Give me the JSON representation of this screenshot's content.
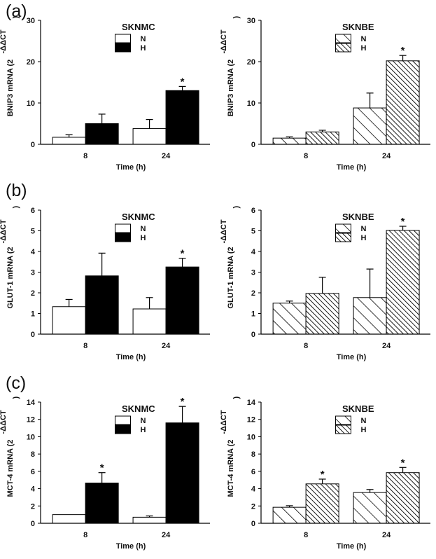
{
  "panel_labels": [
    "(a)",
    "(b)",
    "(c)"
  ],
  "colors": {
    "N": "#ffffff",
    "H_solid": "#000000",
    "stroke": "#000000"
  },
  "chart_data": [
    {
      "type": "bar",
      "title": "SKNMC",
      "hatched": false,
      "xlabel": "Time (h)",
      "ylabel": "BNIP3 mRNA (2",
      "categories": [
        "8",
        "24"
      ],
      "ylim": [
        0,
        30
      ],
      "yticks": [
        0,
        10,
        20,
        30
      ],
      "legend": [
        "N",
        "H"
      ],
      "legend_placement": "top-center",
      "series": [
        {
          "name": "N",
          "values": [
            1.7,
            3.8
          ],
          "errors": [
            0.6,
            2.2
          ]
        },
        {
          "name": "H",
          "values": [
            5.0,
            13.0
          ],
          "errors": [
            2.3,
            1.0
          ]
        }
      ],
      "significance": [
        [
          false,
          false
        ],
        [
          false,
          true
        ]
      ]
    },
    {
      "type": "bar",
      "title": "SKNBE",
      "hatched": true,
      "xlabel": "Time (h)",
      "ylabel": "BNIP3 mRNA (2",
      "categories": [
        "8",
        "24"
      ],
      "ylim": [
        0,
        30
      ],
      "yticks": [
        0,
        10,
        20,
        30
      ],
      "legend": [
        "N",
        "H"
      ],
      "legend_placement": "top-center",
      "series": [
        {
          "name": "N",
          "values": [
            1.5,
            8.8
          ],
          "errors": [
            0.3,
            3.6
          ]
        },
        {
          "name": "H",
          "values": [
            3.0,
            20.2
          ],
          "errors": [
            0.4,
            1.3
          ]
        }
      ],
      "significance": [
        [
          false,
          false
        ],
        [
          false,
          true
        ]
      ]
    },
    {
      "type": "bar",
      "title": "SKNMC",
      "hatched": false,
      "xlabel": "Time (h)",
      "ylabel": "GLUT-1 mRNA (2",
      "categories": [
        "8",
        "24"
      ],
      "ylim": [
        0,
        6
      ],
      "yticks": [
        0,
        1,
        2,
        3,
        4,
        5,
        6
      ],
      "legend": [
        "N",
        "H"
      ],
      "legend_placement": "top-center",
      "series": [
        {
          "name": "N",
          "values": [
            1.33,
            1.22
          ],
          "errors": [
            0.35,
            0.55
          ]
        },
        {
          "name": "H",
          "values": [
            2.82,
            3.25
          ],
          "errors": [
            1.1,
            0.42
          ]
        }
      ],
      "significance": [
        [
          false,
          false
        ],
        [
          false,
          true
        ]
      ]
    },
    {
      "type": "bar",
      "title": "SKNBE",
      "hatched": true,
      "xlabel": "Time (h)",
      "ylabel": "GLUT-1 mRNA (2",
      "categories": [
        "8",
        "24"
      ],
      "ylim": [
        0,
        6
      ],
      "yticks": [
        0,
        1,
        2,
        3,
        4,
        5,
        6
      ],
      "legend": [
        "N",
        "H"
      ],
      "legend_placement": "top-center",
      "series": [
        {
          "name": "N",
          "values": [
            1.5,
            1.77
          ],
          "errors": [
            0.1,
            1.38
          ]
        },
        {
          "name": "H",
          "values": [
            1.97,
            5.02
          ],
          "errors": [
            0.78,
            0.2
          ]
        }
      ],
      "significance": [
        [
          false,
          false
        ],
        [
          false,
          true
        ]
      ]
    },
    {
      "type": "bar",
      "title": "SKNMC",
      "hatched": false,
      "xlabel": "Time (h)",
      "ylabel": "MCT-4 mRNA (2",
      "categories": [
        "8",
        "24"
      ],
      "ylim": [
        0,
        14
      ],
      "yticks": [
        0,
        2,
        4,
        6,
        8,
        10,
        12,
        14
      ],
      "legend": [
        "N",
        "H"
      ],
      "legend_placement": "top-center",
      "series": [
        {
          "name": "N",
          "values": [
            1.0,
            0.7
          ],
          "errors": [
            0,
            0.15
          ]
        },
        {
          "name": "H",
          "values": [
            4.65,
            11.6
          ],
          "errors": [
            1.2,
            1.9
          ]
        }
      ],
      "significance": [
        [
          false,
          false
        ],
        [
          true,
          true
        ]
      ]
    },
    {
      "type": "bar",
      "title": "SKNBE",
      "hatched": true,
      "xlabel": "Time (h)",
      "ylabel": "MCT-4 mRNA (2",
      "categories": [
        "8",
        "24"
      ],
      "ylim": [
        0,
        14
      ],
      "yticks": [
        0,
        2,
        4,
        6,
        8,
        10,
        12,
        14
      ],
      "legend": [
        "N",
        "H"
      ],
      "legend_placement": "top-center",
      "series": [
        {
          "name": "N",
          "values": [
            1.85,
            3.55
          ],
          "errors": [
            0.18,
            0.35
          ]
        },
        {
          "name": "H",
          "values": [
            4.55,
            5.85
          ],
          "errors": [
            0.55,
            0.6
          ]
        }
      ],
      "significance": [
        [
          false,
          false
        ],
        [
          true,
          true
        ]
      ]
    }
  ],
  "ylabel_superscript": "-ΔΔCT",
  "ylabel_close": ")"
}
